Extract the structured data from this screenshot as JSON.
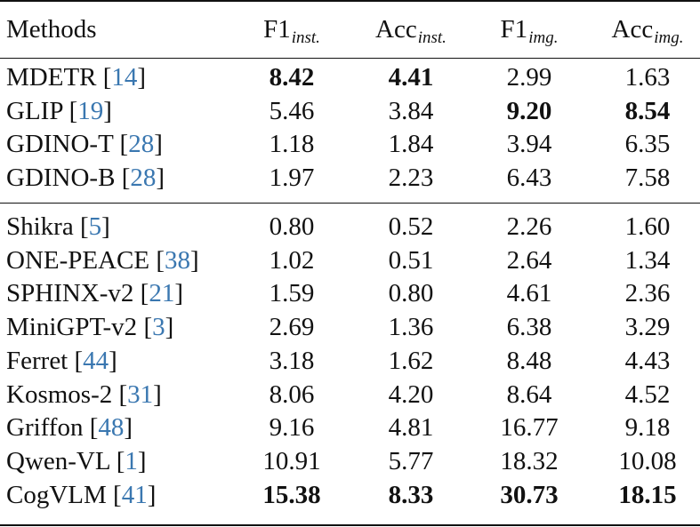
{
  "table": {
    "header": {
      "methods": "Methods",
      "cols": [
        {
          "base": "F1",
          "sub": "inst."
        },
        {
          "base": "Acc",
          "sub": "inst."
        },
        {
          "base": "F1",
          "sub": "img."
        },
        {
          "base": "Acc",
          "sub": "img."
        }
      ]
    },
    "groups": [
      [
        {
          "name": "MDETR",
          "ref": "14",
          "values": [
            "8.42",
            "4.41",
            "2.99",
            "1.63"
          ],
          "bold": [
            true,
            true,
            false,
            false
          ]
        },
        {
          "name": "GLIP",
          "ref": "19",
          "values": [
            "5.46",
            "3.84",
            "9.20",
            "8.54"
          ],
          "bold": [
            false,
            false,
            true,
            true
          ]
        },
        {
          "name": "GDINO-T",
          "ref": "28",
          "values": [
            "1.18",
            "1.84",
            "3.94",
            "6.35"
          ],
          "bold": [
            false,
            false,
            false,
            false
          ]
        },
        {
          "name": "GDINO-B",
          "ref": "28",
          "values": [
            "1.97",
            "2.23",
            "6.43",
            "7.58"
          ],
          "bold": [
            false,
            false,
            false,
            false
          ]
        }
      ],
      [
        {
          "name": "Shikra",
          "ref": "5",
          "values": [
            "0.80",
            "0.52",
            "2.26",
            "1.60"
          ],
          "bold": [
            false,
            false,
            false,
            false
          ]
        },
        {
          "name": "ONE-PEACE",
          "ref": "38",
          "values": [
            "1.02",
            "0.51",
            "2.64",
            "1.34"
          ],
          "bold": [
            false,
            false,
            false,
            false
          ]
        },
        {
          "name": "SPHINX-v2",
          "ref": "21",
          "values": [
            "1.59",
            "0.80",
            "4.61",
            "2.36"
          ],
          "bold": [
            false,
            false,
            false,
            false
          ]
        },
        {
          "name": "MiniGPT-v2",
          "ref": "3",
          "values": [
            "2.69",
            "1.36",
            "6.38",
            "3.29"
          ],
          "bold": [
            false,
            false,
            false,
            false
          ]
        },
        {
          "name": "Ferret",
          "ref": "44",
          "values": [
            "3.18",
            "1.62",
            "8.48",
            "4.43"
          ],
          "bold": [
            false,
            false,
            false,
            false
          ]
        },
        {
          "name": "Kosmos-2",
          "ref": "31",
          "values": [
            "8.06",
            "4.20",
            "8.64",
            "4.52"
          ],
          "bold": [
            false,
            false,
            false,
            false
          ]
        },
        {
          "name": "Griffon",
          "ref": "48",
          "values": [
            "9.16",
            "4.81",
            "16.77",
            "9.18"
          ],
          "bold": [
            false,
            false,
            false,
            false
          ]
        },
        {
          "name": "Qwen-VL",
          "ref": "1",
          "values": [
            "10.91",
            "5.77",
            "18.32",
            "10.08"
          ],
          "bold": [
            false,
            false,
            false,
            false
          ]
        },
        {
          "name": "CogVLM",
          "ref": "41",
          "values": [
            "15.38",
            "8.33",
            "30.73",
            "18.15"
          ],
          "bold": [
            true,
            true,
            true,
            true
          ]
        }
      ]
    ]
  }
}
